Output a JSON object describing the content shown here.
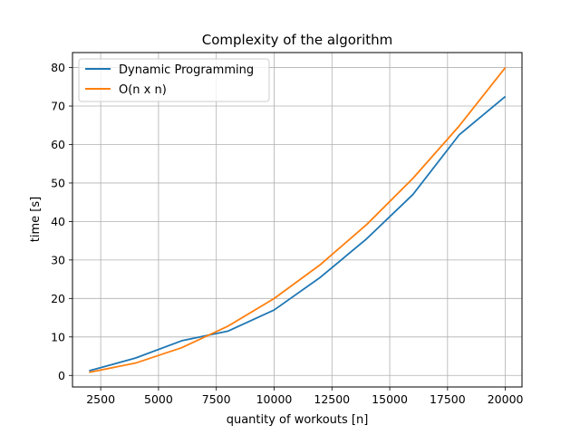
{
  "chart_data": {
    "type": "line",
    "title": "Complexity of the algorithm",
    "xlabel": "quantity of workouts [n]",
    "ylabel": "time [s]",
    "xlim": [
      1280,
      20720
    ],
    "ylim": [
      -3.0,
      83.9
    ],
    "xticks": [
      2500,
      5000,
      7500,
      10000,
      12500,
      15000,
      17500,
      20000
    ],
    "yticks": [
      0,
      10,
      20,
      30,
      40,
      50,
      60,
      70,
      80
    ],
    "grid": true,
    "legend_position": "top-left",
    "series": [
      {
        "name": "Dynamic Programming",
        "color": "#1f77b4",
        "x": [
          2000,
          4000,
          6000,
          8000,
          10000,
          12000,
          14000,
          16000,
          18000,
          20000
        ],
        "y": [
          1.2,
          4.5,
          9.0,
          11.5,
          17.0,
          25.5,
          35.5,
          47.0,
          62.5,
          72.5
        ]
      },
      {
        "name": "O(n x n)",
        "color": "#ff7f0e",
        "x": [
          2000,
          4000,
          6000,
          8000,
          10000,
          12000,
          14000,
          16000,
          18000,
          20000
        ],
        "y": [
          0.8,
          3.2,
          7.2,
          12.8,
          20.0,
          28.8,
          39.2,
          51.2,
          64.8,
          80.0
        ]
      }
    ]
  }
}
